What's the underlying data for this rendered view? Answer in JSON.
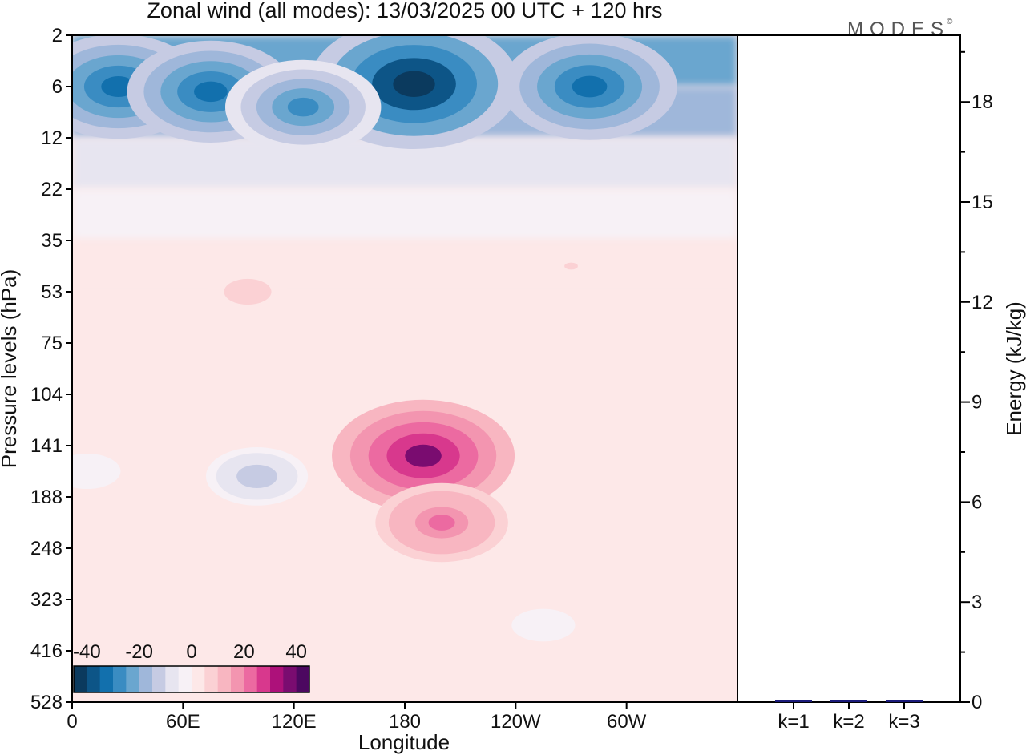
{
  "title": "Zonal wind (all modes):  13/03/2025  00 UTC  + 120 hrs",
  "logo": "MODES",
  "logo_mark": "©",
  "colors": {
    "frame": "#000000",
    "energy_bar": "#1a1a7a"
  },
  "chart_data": [
    {
      "type": "heatmap",
      "title": "Zonal wind (all modes):  13/03/2025  00 UTC  + 120 hrs",
      "xlabel": "Longitude",
      "ylabel": "Pressure levels (hPa)",
      "x_ticks": [
        "0",
        "60E",
        "120E",
        "180",
        "120W",
        "60W"
      ],
      "y_ticks": [
        "2",
        "6",
        "12",
        "22",
        "35",
        "53",
        "75",
        "104",
        "141",
        "188",
        "248",
        "323",
        "416",
        "528"
      ],
      "colorbar": {
        "tick_labels": [
          "-40",
          "-20",
          "0",
          "20",
          "40"
        ],
        "range": [
          -45,
          45
        ],
        "colors": [
          "#0b3a5e",
          "#0d5587",
          "#1270ad",
          "#3a8cc2",
          "#6aa6cf",
          "#9fb7da",
          "#c6cbe3",
          "#e7e5f0",
          "#f7f1f6",
          "#fde8e8",
          "#fbd1d4",
          "#f8b6c1",
          "#f395b0",
          "#ec6aa1",
          "#d8388d",
          "#ad117a",
          "#7a0c70",
          "#4c0860"
        ]
      },
      "features": [
        {
          "lon": 185,
          "level_index": 0.95,
          "value": -42
        },
        {
          "lon": 25,
          "level_index": 1.0,
          "value": -32
        },
        {
          "lon": 75,
          "level_index": 1.1,
          "value": -31
        },
        {
          "lon": 280,
          "level_index": 1.0,
          "value": -33
        },
        {
          "lon": 125,
          "level_index": 1.4,
          "value": -28
        },
        {
          "lon": 190,
          "level_index": 8.2,
          "value": 35
        },
        {
          "lon": 200,
          "level_index": 9.5,
          "value": 22
        },
        {
          "lon": 95,
          "level_index": 5.0,
          "value": 8
        },
        {
          "lon": 270,
          "level_index": 4.5,
          "value": 5
        },
        {
          "lon": 100,
          "level_index": 8.6,
          "value": -14
        },
        {
          "lon": 255,
          "level_index": 11.5,
          "value": -4
        },
        {
          "lon": 8,
          "level_index": 8.5,
          "value": -5
        }
      ]
    },
    {
      "type": "bar",
      "categories": [
        "k=1",
        "k=2",
        "k=3"
      ],
      "values": [
        0.05,
        0.02,
        0.04
      ],
      "ylabel": "Energy (kJ/kg)",
      "ylim": [
        0,
        20
      ],
      "y_ticks": [
        "0",
        "3",
        "6",
        "9",
        "12",
        "15",
        "18"
      ]
    }
  ]
}
